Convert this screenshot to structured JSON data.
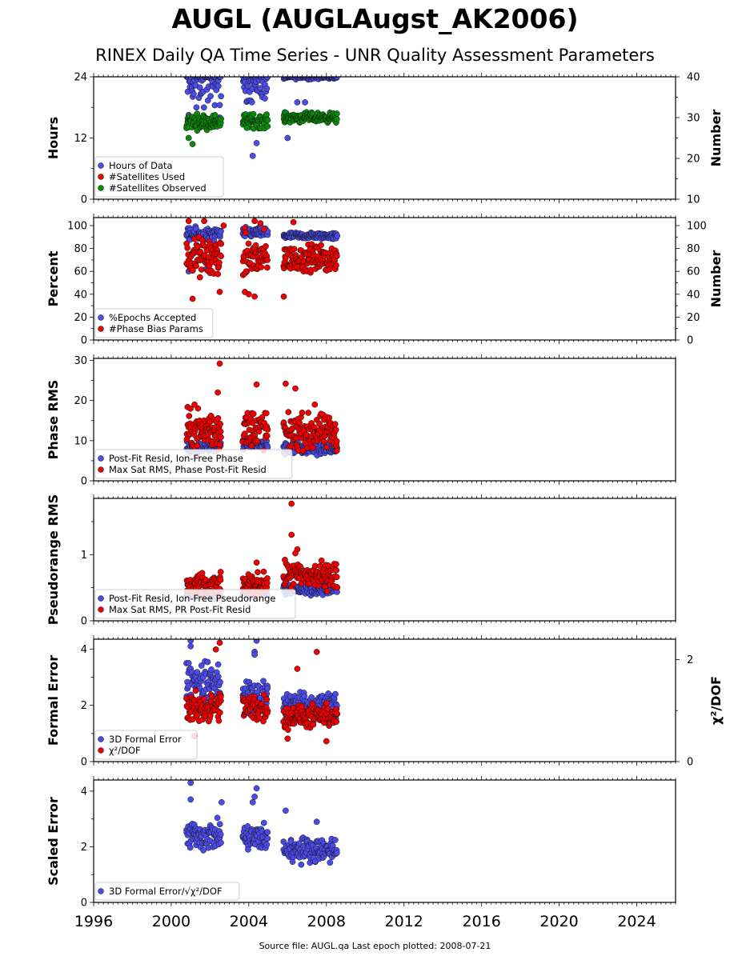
{
  "title": "AUGL (AUGLAugst_AK2006)",
  "subtitle": "RINEX Daily QA Time Series - UNR Quality Assessment Parameters",
  "footer": "Source file: AUGL.qa Last epoch plotted: 2008-07-21",
  "colors": {
    "blue": "#4b4bea",
    "red": "#ee0000",
    "green": "#0a8a0a"
  },
  "chart_data": [
    {
      "type": "scatter",
      "ylabel": "Hours",
      "ylim": [
        0,
        24
      ],
      "yticks": [
        0,
        12,
        24
      ],
      "y2label": "Number",
      "y2lim": [
        10,
        40
      ],
      "y2ticks": [
        10,
        20,
        30,
        40
      ],
      "legend_position": "lower-left",
      "series": [
        {
          "name": "Hours of Data",
          "color": "blue",
          "axis": "left",
          "clusters": [
            [
              2000.8,
              2002.6,
              23.5,
              3.5
            ],
            [
              2003.7,
              2005.0,
              23.3,
              3.0
            ],
            [
              2005.8,
              2008.55,
              24.0,
              0.3
            ]
          ],
          "outliers": [
            [
              2000.9,
              16.5
            ],
            [
              2001.3,
              18.0
            ],
            [
              2002.5,
              16.0
            ],
            [
              2004.2,
              8.5
            ],
            [
              2004.4,
              11.0
            ],
            [
              2006.0,
              12.0
            ],
            [
              2006.5,
              19.0
            ],
            [
              2006.9,
              19.0
            ]
          ]
        },
        {
          "name": "#Satellites Used",
          "color": "red",
          "axis": "right",
          "clusters": [],
          "outliers": []
        },
        {
          "name": "#Satellites Observed",
          "color": "green",
          "axis": "right",
          "clusters": [
            [
              2000.8,
              2002.6,
              29.0,
              1.2
            ],
            [
              2003.7,
              2005.0,
              29.2,
              1.2
            ],
            [
              2005.8,
              2008.55,
              30.0,
              0.8
            ]
          ],
          "outliers": [
            [
              2001.1,
              23.5
            ],
            [
              2000.9,
              25.0
            ],
            [
              2003.9,
              27.5
            ]
          ]
        }
      ]
    },
    {
      "type": "scatter",
      "ylabel": "Percent",
      "ylim": [
        0,
        107
      ],
      "yticks": [
        0,
        20,
        40,
        60,
        80,
        100
      ],
      "y2label": "Number",
      "y2lim": [
        0,
        107
      ],
      "y2ticks": [
        0,
        20,
        40,
        60,
        80,
        100
      ],
      "legend_position": "lower-left",
      "series": [
        {
          "name": "%Epochs Accepted",
          "color": "blue",
          "axis": "left",
          "clusters": [
            [
              2000.8,
              2002.6,
              92,
              4
            ],
            [
              2003.7,
              2005.0,
              94,
              3
            ],
            [
              2005.8,
              2008.55,
              91,
              2
            ]
          ],
          "outliers": [
            [
              2001.8,
              62
            ],
            [
              2000.9,
              60
            ]
          ]
        },
        {
          "name": "#Phase Bias Params",
          "color": "red",
          "axis": "right",
          "clusters": [
            [
              2000.8,
              2002.6,
              72,
              12
            ],
            [
              2003.7,
              2005.0,
              72,
              14
            ],
            [
              2005.8,
              2008.55,
              71,
              8
            ]
          ],
          "outliers": [
            [
              2000.9,
              104
            ],
            [
              2001.7,
              104
            ],
            [
              2002.7,
              100
            ],
            [
              2004.3,
              104
            ],
            [
              2004.6,
              102
            ],
            [
              2006.3,
              103
            ],
            [
              2001.1,
              36
            ],
            [
              2002.5,
              42
            ],
            [
              2003.8,
              42
            ],
            [
              2004.0,
              40
            ],
            [
              2004.3,
              38
            ],
            [
              2005.8,
              38
            ],
            [
              2006.5,
              64
            ]
          ]
        }
      ]
    },
    {
      "type": "scatter",
      "ylabel": "Phase RMS",
      "ylim": [
        0,
        30.5
      ],
      "yticks": [
        0,
        10,
        20,
        30
      ],
      "legend_position": "lower-left",
      "series": [
        {
          "name": "Post-Fit Resid, Ion-Free Phase",
          "color": "blue",
          "axis": "left",
          "clusters": [
            [
              2000.8,
              2002.6,
              8.5,
              1.0
            ],
            [
              2003.7,
              2005.0,
              9.0,
              0.8
            ],
            [
              2005.8,
              2008.55,
              8.0,
              1.0
            ]
          ],
          "outliers": []
        },
        {
          "name": "Max Sat RMS, Phase Post-Fit Resid",
          "color": "red",
          "axis": "left",
          "clusters": [
            [
              2000.8,
              2002.6,
              12.5,
              3.5
            ],
            [
              2003.7,
              2005.0,
              13.0,
              3.5
            ],
            [
              2005.8,
              2008.55,
              12.0,
              3.0
            ]
          ],
          "outliers": [
            [
              2002.5,
              29.2
            ],
            [
              2002.4,
              22.0
            ],
            [
              2004.4,
              24.0
            ],
            [
              2005.9,
              24.2
            ],
            [
              2006.4,
              23.0
            ],
            [
              2001.2,
              19.0
            ],
            [
              2007.4,
              19.0
            ]
          ]
        }
      ]
    },
    {
      "type": "scatter",
      "ylabel": "Pseudorange RMS",
      "ylim": [
        0,
        1.85
      ],
      "yticks": [
        0,
        1
      ],
      "legend_position": "lower-left",
      "series": [
        {
          "name": "Post-Fit Resid, Ion-Free Pseudorange",
          "color": "blue",
          "axis": "left",
          "clusters": [
            [
              2000.8,
              2002.6,
              0.4,
              0.04
            ],
            [
              2003.7,
              2005.0,
              0.42,
              0.04
            ],
            [
              2005.8,
              2008.55,
              0.48,
              0.06
            ]
          ],
          "outliers": []
        },
        {
          "name": "Max Sat RMS, PR Post-Fit Resid",
          "color": "red",
          "axis": "left",
          "clusters": [
            [
              2000.8,
              2002.6,
              0.52,
              0.12
            ],
            [
              2003.7,
              2005.0,
              0.55,
              0.12
            ],
            [
              2005.8,
              2008.55,
              0.68,
              0.14
            ]
          ],
          "outliers": [
            [
              2006.2,
              1.77
            ],
            [
              2006.2,
              1.3
            ],
            [
              2006.5,
              1.08
            ],
            [
              2004.4,
              0.88
            ],
            [
              2006.4,
              1.02
            ]
          ]
        }
      ]
    },
    {
      "type": "scatter",
      "ylabel": "Formal Error",
      "ylim": [
        0,
        4.35
      ],
      "yticks": [
        0,
        2,
        4
      ],
      "y2label": "χ²/DOF",
      "y2lim": [
        0,
        2.4
      ],
      "y2ticks": [
        0,
        2
      ],
      "legend_position": "lower-left",
      "series": [
        {
          "name": "3D Formal Error",
          "color": "blue",
          "axis": "left",
          "clusters": [
            [
              2000.8,
              2002.6,
              2.8,
              0.5
            ],
            [
              2003.7,
              2005.0,
              2.3,
              0.5
            ],
            [
              2005.8,
              2008.55,
              2.0,
              0.35
            ]
          ],
          "outliers": [
            [
              2001.0,
              4.3
            ],
            [
              2001.0,
              4.1
            ],
            [
              2004.4,
              4.3
            ],
            [
              2004.3,
              3.9
            ],
            [
              2004.3,
              3.8
            ],
            [
              2000.9,
              3.5
            ]
          ]
        },
        {
          "name": "χ²/DOF",
          "color": "red",
          "axis": "right",
          "clusters": [
            [
              2000.8,
              2002.6,
              1.05,
              0.2
            ],
            [
              2003.7,
              2005.0,
              1.05,
              0.2
            ],
            [
              2005.8,
              2008.55,
              0.88,
              0.15
            ]
          ],
          "outliers": [
            [
              2002.5,
              2.33
            ],
            [
              2002.3,
              2.2
            ],
            [
              2007.5,
              2.15
            ],
            [
              2006.5,
              1.82
            ],
            [
              2001.2,
              0.5
            ],
            [
              2006.0,
              0.45
            ],
            [
              2008.0,
              0.4
            ]
          ]
        }
      ]
    },
    {
      "type": "scatter",
      "ylabel": "Scaled Error",
      "ylim": [
        0,
        4.4
      ],
      "yticks": [
        0,
        2,
        4
      ],
      "legend_position": "lower-left",
      "series": [
        {
          "name": "3D Formal Error/√χ²/DOF",
          "color": "blue",
          "axis": "left",
          "clusters": [
            [
              2000.8,
              2002.6,
              2.4,
              0.35
            ],
            [
              2003.7,
              2005.0,
              2.3,
              0.35
            ],
            [
              2005.8,
              2008.55,
              1.9,
              0.3
            ]
          ],
          "outliers": [
            [
              2001.0,
              4.3
            ],
            [
              2004.4,
              4.1
            ],
            [
              2004.3,
              3.8
            ],
            [
              2004.2,
              3.6
            ],
            [
              2002.6,
              3.6
            ],
            [
              2001.0,
              3.7
            ],
            [
              2005.9,
              3.3
            ],
            [
              2007.5,
              2.9
            ]
          ]
        }
      ]
    }
  ],
  "x_axis": {
    "xlim": [
      1996,
      2026
    ],
    "ticks": [
      "1996",
      "2000",
      "2004",
      "2008",
      "2012",
      "2016",
      "2020",
      "2024"
    ]
  }
}
